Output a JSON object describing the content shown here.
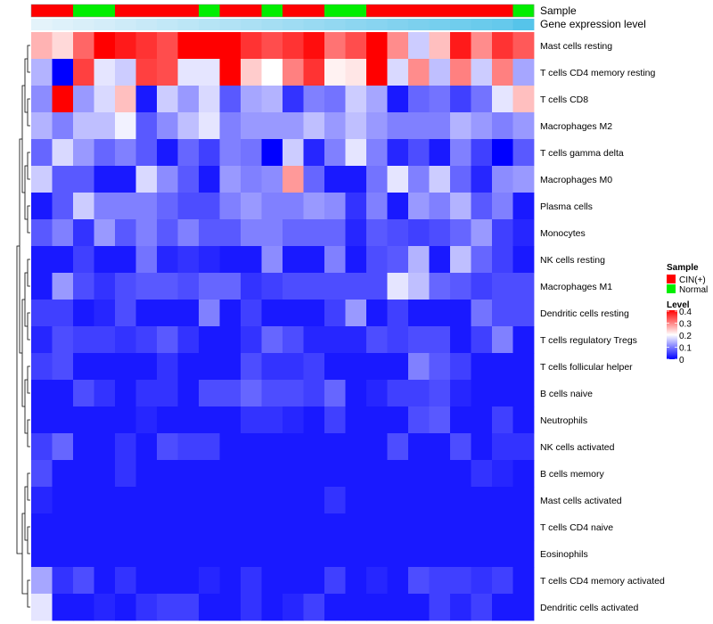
{
  "chart_data": {
    "type": "heatmap",
    "title": "",
    "annotation_rows": {
      "sample_label": "Sample",
      "expression_label": "Gene expression level"
    },
    "columns": 24,
    "sample_groups": [
      "CIN(+)",
      "CIN(+)",
      "Normal",
      "Normal",
      "CIN(+)",
      "CIN(+)",
      "CIN(+)",
      "CIN(+)",
      "Normal",
      "CIN(+)",
      "CIN(+)",
      "Normal",
      "CIN(+)",
      "CIN(+)",
      "Normal",
      "Normal",
      "CIN(+)",
      "CIN(+)",
      "CIN(+)",
      "CIN(+)",
      "CIN(+)",
      "CIN(+)",
      "CIN(+)",
      "Normal"
    ],
    "expression_levels": [
      0.03,
      0.07,
      0.1,
      0.14,
      0.18,
      0.22,
      0.26,
      0.3,
      0.34,
      0.38,
      0.42,
      0.46,
      0.5,
      0.54,
      0.58,
      0.62,
      0.66,
      0.7,
      0.74,
      0.78,
      0.82,
      0.86,
      0.9,
      1.0
    ],
    "rows": [
      "Mast cells resting",
      "T cells CD4 memory resting",
      "T cells CD8",
      "Macrophages M2",
      "T cells gamma delta",
      "Macrophages M0",
      "Plasma cells",
      "Monocytes",
      "NK cells resting",
      "Macrophages M1",
      "Dendritic cells resting",
      "T cells regulatory  Tregs",
      "T cells follicular helper",
      "B cells naive",
      "Neutrophils",
      "NK cells activated",
      "B cells memory",
      "Mast cells activated",
      "T cells CD4 naive",
      "Eosinophils",
      "T cells CD4 memory activated",
      "Dendritic cells activated"
    ],
    "values": [
      [
        0.26,
        0.23,
        0.32,
        0.4,
        0.38,
        0.36,
        0.34,
        0.4,
        0.4,
        0.4,
        0.36,
        0.34,
        0.36,
        0.39,
        0.31,
        0.34,
        0.4,
        0.29,
        0.16,
        0.25,
        0.38,
        0.29,
        0.36,
        0.33
      ],
      [
        0.14,
        0.0,
        0.35,
        0.18,
        0.16,
        0.35,
        0.34,
        0.18,
        0.18,
        0.4,
        0.24,
        0.2,
        0.3,
        0.36,
        0.21,
        0.22,
        0.4,
        0.17,
        0.29,
        0.15,
        0.3,
        0.16,
        0.3,
        0.13
      ],
      [
        0.11,
        0.4,
        0.12,
        0.17,
        0.25,
        0.02,
        0.16,
        0.12,
        0.17,
        0.07,
        0.13,
        0.14,
        0.04,
        0.1,
        0.09,
        0.16,
        0.13,
        0.02,
        0.08,
        0.09,
        0.05,
        0.09,
        0.18,
        0.25
      ],
      [
        0.14,
        0.1,
        0.15,
        0.15,
        0.19,
        0.07,
        0.11,
        0.15,
        0.18,
        0.1,
        0.12,
        0.12,
        0.12,
        0.15,
        0.12,
        0.15,
        0.12,
        0.1,
        0.1,
        0.1,
        0.14,
        0.12,
        0.1,
        0.12
      ],
      [
        0.08,
        0.17,
        0.12,
        0.08,
        0.1,
        0.07,
        0.02,
        0.08,
        0.05,
        0.1,
        0.09,
        0.0,
        0.16,
        0.03,
        0.1,
        0.18,
        0.1,
        0.03,
        0.06,
        0.02,
        0.1,
        0.05,
        0.0,
        0.07
      ],
      [
        0.16,
        0.07,
        0.07,
        0.02,
        0.02,
        0.17,
        0.11,
        0.07,
        0.02,
        0.12,
        0.1,
        0.11,
        0.28,
        0.08,
        0.02,
        0.02,
        0.09,
        0.18,
        0.1,
        0.16,
        0.08,
        0.03,
        0.11,
        0.12
      ],
      [
        0.02,
        0.07,
        0.16,
        0.1,
        0.1,
        0.1,
        0.08,
        0.06,
        0.06,
        0.1,
        0.12,
        0.1,
        0.1,
        0.12,
        0.11,
        0.04,
        0.1,
        0.02,
        0.12,
        0.1,
        0.14,
        0.07,
        0.1,
        0.02
      ],
      [
        0.07,
        0.1,
        0.04,
        0.12,
        0.07,
        0.1,
        0.07,
        0.1,
        0.07,
        0.07,
        0.1,
        0.1,
        0.08,
        0.08,
        0.08,
        0.03,
        0.07,
        0.06,
        0.05,
        0.06,
        0.08,
        0.12,
        0.05,
        0.03
      ],
      [
        0.02,
        0.02,
        0.05,
        0.02,
        0.02,
        0.09,
        0.03,
        0.04,
        0.03,
        0.02,
        0.02,
        0.11,
        0.02,
        0.02,
        0.1,
        0.02,
        0.06,
        0.07,
        0.14,
        0.02,
        0.15,
        0.08,
        0.05,
        0.02
      ],
      [
        0.02,
        0.12,
        0.06,
        0.04,
        0.06,
        0.07,
        0.07,
        0.06,
        0.08,
        0.08,
        0.04,
        0.05,
        0.06,
        0.06,
        0.06,
        0.06,
        0.06,
        0.18,
        0.15,
        0.08,
        0.07,
        0.05,
        0.06,
        0.06
      ],
      [
        0.05,
        0.05,
        0.02,
        0.03,
        0.06,
        0.02,
        0.02,
        0.02,
        0.1,
        0.02,
        0.05,
        0.02,
        0.02,
        0.02,
        0.05,
        0.12,
        0.02,
        0.05,
        0.02,
        0.02,
        0.02,
        0.09,
        0.06,
        0.06
      ],
      [
        0.03,
        0.06,
        0.05,
        0.05,
        0.04,
        0.05,
        0.07,
        0.04,
        0.02,
        0.02,
        0.04,
        0.08,
        0.06,
        0.03,
        0.03,
        0.03,
        0.06,
        0.05,
        0.06,
        0.06,
        0.02,
        0.05,
        0.1,
        0.02
      ],
      [
        0.05,
        0.06,
        0.02,
        0.02,
        0.02,
        0.02,
        0.04,
        0.02,
        0.02,
        0.02,
        0.06,
        0.04,
        0.04,
        0.05,
        0.02,
        0.02,
        0.02,
        0.02,
        0.1,
        0.07,
        0.05,
        0.02,
        0.02,
        0.02
      ],
      [
        0.02,
        0.02,
        0.06,
        0.04,
        0.02,
        0.04,
        0.04,
        0.02,
        0.06,
        0.06,
        0.08,
        0.06,
        0.06,
        0.05,
        0.08,
        0.02,
        0.03,
        0.05,
        0.05,
        0.06,
        0.03,
        0.02,
        0.02,
        0.02
      ],
      [
        0.02,
        0.02,
        0.02,
        0.02,
        0.02,
        0.03,
        0.02,
        0.02,
        0.02,
        0.02,
        0.04,
        0.04,
        0.03,
        0.02,
        0.05,
        0.02,
        0.02,
        0.02,
        0.06,
        0.07,
        0.02,
        0.02,
        0.05,
        0.02
      ],
      [
        0.05,
        0.08,
        0.02,
        0.02,
        0.04,
        0.02,
        0.06,
        0.05,
        0.05,
        0.02,
        0.02,
        0.02,
        0.02,
        0.02,
        0.02,
        0.02,
        0.02,
        0.06,
        0.02,
        0.02,
        0.06,
        0.02,
        0.04,
        0.04
      ],
      [
        0.06,
        0.02,
        0.02,
        0.02,
        0.04,
        0.02,
        0.02,
        0.02,
        0.02,
        0.02,
        0.02,
        0.02,
        0.02,
        0.02,
        0.02,
        0.02,
        0.02,
        0.02,
        0.02,
        0.02,
        0.02,
        0.04,
        0.03,
        0.02
      ],
      [
        0.03,
        0.02,
        0.02,
        0.02,
        0.02,
        0.02,
        0.02,
        0.02,
        0.02,
        0.02,
        0.02,
        0.02,
        0.02,
        0.02,
        0.04,
        0.02,
        0.02,
        0.02,
        0.02,
        0.02,
        0.02,
        0.02,
        0.02,
        0.02
      ],
      [
        0.02,
        0.02,
        0.02,
        0.02,
        0.02,
        0.02,
        0.02,
        0.02,
        0.02,
        0.02,
        0.02,
        0.02,
        0.02,
        0.02,
        0.02,
        0.02,
        0.02,
        0.02,
        0.02,
        0.02,
        0.02,
        0.02,
        0.02,
        0.02
      ],
      [
        0.02,
        0.02,
        0.02,
        0.02,
        0.02,
        0.02,
        0.02,
        0.02,
        0.02,
        0.02,
        0.02,
        0.02,
        0.02,
        0.02,
        0.02,
        0.02,
        0.02,
        0.02,
        0.02,
        0.02,
        0.02,
        0.02,
        0.02,
        0.02
      ],
      [
        0.13,
        0.04,
        0.06,
        0.02,
        0.04,
        0.02,
        0.02,
        0.02,
        0.03,
        0.02,
        0.04,
        0.02,
        0.02,
        0.02,
        0.05,
        0.02,
        0.03,
        0.02,
        0.06,
        0.05,
        0.05,
        0.04,
        0.05,
        0.02
      ],
      [
        0.18,
        0.02,
        0.02,
        0.03,
        0.02,
        0.04,
        0.05,
        0.05,
        0.02,
        0.02,
        0.04,
        0.02,
        0.03,
        0.05,
        0.02,
        0.02,
        0.02,
        0.02,
        0.02,
        0.05,
        0.03,
        0.05,
        0.02,
        0.02
      ]
    ],
    "legend": {
      "sample_title": "Sample",
      "sample_entries": [
        {
          "name": "CIN(+)",
          "color": "#ff0000"
        },
        {
          "name": "Normal",
          "color": "#00ee00"
        }
      ],
      "level_title": "Level",
      "level_ticks": [
        "0.4",
        "0.3",
        "0.2",
        "0.1",
        "0"
      ],
      "range": [
        0,
        0.4
      ],
      "placement": "right"
    },
    "colors": {
      "low": "#0000ff",
      "mid": "#ffffff",
      "high": "#ff0000",
      "expr_low": "#e8f4fb",
      "expr_high": "#56c4ea"
    }
  }
}
